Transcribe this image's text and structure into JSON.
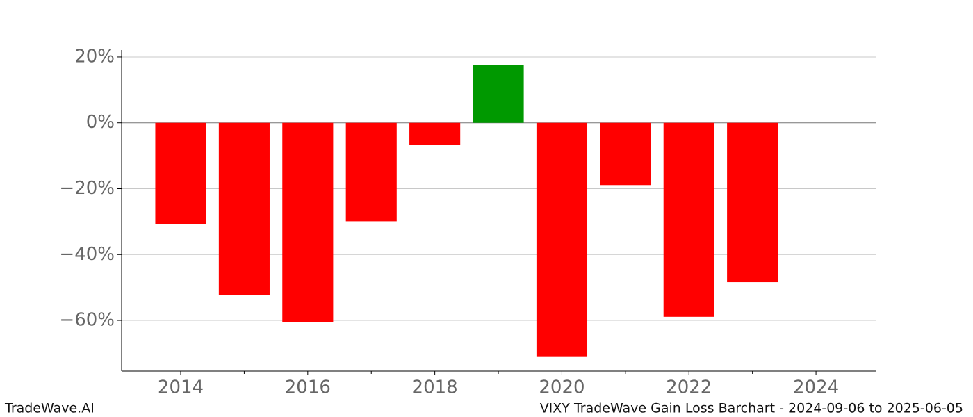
{
  "chart_data": {
    "type": "bar",
    "title": "VIXY TradeWave Gain Loss Barchart - 2024-09-06 to 2025-06-05",
    "watermark": "TradeWave.AI",
    "x": [
      2014,
      2015,
      2016,
      2017,
      2018,
      2019,
      2020,
      2021,
      2022,
      2023
    ],
    "values": [
      -30.7,
      -52.2,
      -60.6,
      -29.9,
      -6.7,
      17.5,
      -70.9,
      -18.9,
      -58.9,
      -48.4
    ],
    "positive_color": "#009900",
    "negative_color": "#ff0000",
    "xlim": [
      2013.07,
      2024.94
    ],
    "xticks": [
      2014,
      2016,
      2018,
      2020,
      2022,
      2024
    ],
    "xminorticks": [
      2015,
      2017,
      2019,
      2021,
      2023
    ],
    "ylim": [
      -75.4,
      22.1
    ],
    "yticks": [
      {
        "value": 20,
        "label": "20%"
      },
      {
        "value": 0,
        "label": "0%"
      },
      {
        "value": -20,
        "label": "−20%"
      },
      {
        "value": -40,
        "label": "−40%"
      },
      {
        "value": -60,
        "label": "−60%"
      }
    ],
    "grid": true
  }
}
